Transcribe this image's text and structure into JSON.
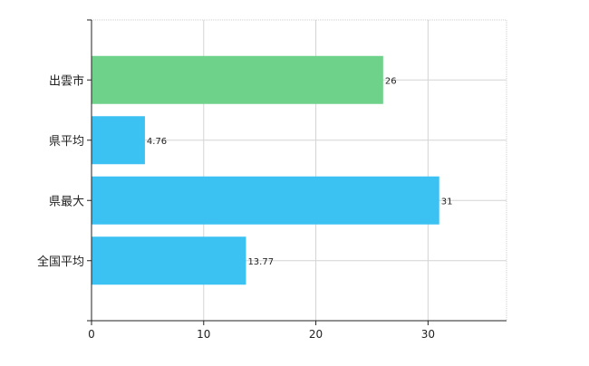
{
  "chart_data": {
    "type": "bar",
    "orientation": "horizontal",
    "categories": [
      "出雲市",
      "県平均",
      "県最大",
      "全国平均"
    ],
    "values": [
      26,
      4.76,
      31,
      13.77
    ],
    "data_labels": [
      "26",
      "4.76",
      "31",
      "13.77"
    ],
    "bar_colors": [
      "#6fd28a",
      "#3bc2f2",
      "#3bc2f2",
      "#3bc2f2"
    ],
    "xlim": [
      0,
      37
    ],
    "x_ticks": [
      0,
      10,
      20,
      30
    ],
    "grid": true,
    "title": "",
    "xlabel": "",
    "ylabel": ""
  }
}
